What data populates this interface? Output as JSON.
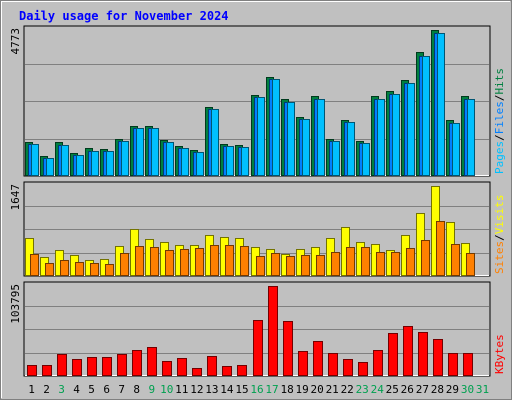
{
  "chart_data": {
    "type": "bar",
    "title": "Daily usage for November 2024",
    "days": [
      "1",
      "2",
      "3",
      "4",
      "5",
      "6",
      "7",
      "8",
      "9",
      "10",
      "11",
      "12",
      "13",
      "14",
      "15",
      "16",
      "17",
      "18",
      "19",
      "20",
      "21",
      "22",
      "23",
      "24",
      "25",
      "26",
      "27",
      "28",
      "29",
      "30",
      "31"
    ],
    "weekend_days": [
      "3",
      "9",
      "10",
      "16",
      "17",
      "23",
      "24",
      "30",
      "31"
    ],
    "panels": [
      {
        "id": "hits",
        "ymax": 4773,
        "ymax_label": "4773",
        "legend": [
          "Pages",
          "/",
          "Files",
          "/",
          "Hits"
        ],
        "series": [
          {
            "key": "hits",
            "color": "#008040",
            "values": [
              1120,
              640,
              1100,
              740,
              900,
              880,
              1220,
              1630,
              1620,
              1180,
              970,
              850,
              2270,
              1040,
              1010,
              2650,
              3240,
              2520,
              1930,
              2630,
              1210,
              1840,
              1150,
              2600,
              2770,
              3140,
              4040,
              4773,
              1830,
              2620,
              0
            ]
          },
          {
            "key": "files",
            "color": "#0080ff",
            "values": [
              1060,
              600,
              1010,
              690,
              830,
              820,
              1150,
              1580,
              1560,
              1110,
              900,
              780,
              2180,
              980,
              940,
              2570,
              3160,
              2420,
              1850,
              2520,
              1140,
              1750,
              1080,
              2520,
              2680,
              3040,
              3930,
              4660,
              1740,
              2520,
              0
            ]
          },
          {
            "key": "pages",
            "color": "#00c0ff",
            "values": [
              1060,
              600,
              1010,
              690,
              830,
              820,
              1150,
              1580,
              1560,
              1110,
              900,
              780,
              2180,
              980,
              940,
              2570,
              3160,
              2420,
              1850,
              2520,
              1140,
              1750,
              1080,
              2520,
              2680,
              3040,
              3930,
              4660,
              1740,
              2520,
              0
            ]
          }
        ]
      },
      {
        "id": "visits",
        "ymax": 1647,
        "ymax_label": "1647",
        "legend": [
          "Sites",
          "/",
          "Visits"
        ],
        "series": [
          {
            "key": "visits",
            "color": "#ffff00",
            "values": [
              690,
              350,
              470,
              380,
              290,
              310,
              550,
              860,
              680,
              620,
              570,
              560,
              750,
              720,
              690,
              530,
              500,
              410,
              500,
              530,
              690,
              890,
              620,
              580,
              480,
              750,
              1160,
              1647,
              980,
              610,
              0
            ]
          },
          {
            "key": "sites",
            "color": "#ff8000",
            "values": [
              400,
              240,
              300,
              260,
              240,
              220,
              430,
              540,
              530,
              470,
              490,
              510,
              560,
              560,
              550,
              360,
              420,
              370,
              380,
              390,
              440,
              530,
              530,
              440,
              440,
              510,
              660,
              1010,
              580,
              430,
              0
            ]
          }
        ]
      },
      {
        "id": "kbytes",
        "ymax": 103795,
        "ymax_label": "103795",
        "legend": [
          "KBytes"
        ],
        "series": [
          {
            "key": "kbytes",
            "color": "#ff0000",
            "values": [
              13000,
              13000,
              25000,
              20000,
              22000,
              22000,
              25000,
              30000,
              34000,
              17000,
              21000,
              9000,
              23000,
              11000,
              13000,
              65000,
              103795,
              64000,
              29000,
              40000,
              27000,
              20000,
              16000,
              30000,
              50000,
              58000,
              51000,
              43000,
              26000,
              27000,
              0
            ]
          }
        ]
      }
    ],
    "grid": true,
    "background": "#c0c0c0",
    "legend_position": "right, rotated"
  }
}
